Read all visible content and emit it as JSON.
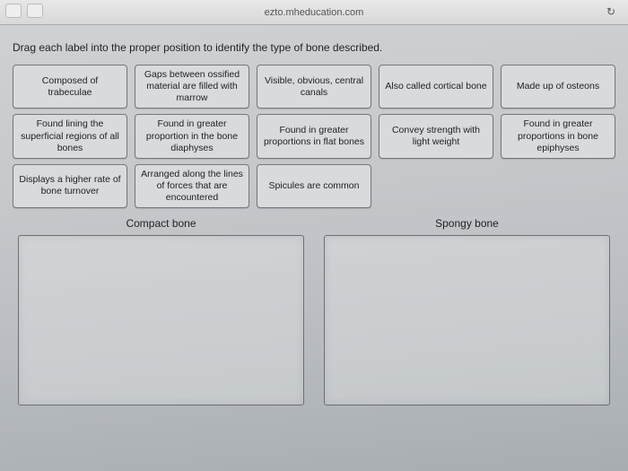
{
  "browser": {
    "url": "ezto.mheducation.com"
  },
  "instruction": "Drag each label into the proper position to identify the type of bone described.",
  "labels": {
    "row1": [
      "Composed of trabeculae",
      "Gaps between ossified material are filled with marrow",
      "Visible, obvious, central canals",
      "Also called cortical bone",
      "Made up of osteons"
    ],
    "row2": [
      "Found lining the superficial regions of all bones",
      "Found in greater proportion in the bone diaphyses",
      "Found in greater proportions in flat bones",
      "Convey strength with light weight",
      "Found in greater proportions in bone epiphyses"
    ],
    "row3": [
      "Displays a higher rate of bone turnover",
      "Arranged along the lines of forces that are encountered",
      "Spicules are common"
    ]
  },
  "zones": {
    "left": "Compact bone",
    "right": "Spongy bone"
  },
  "colors": {
    "card_bg": "#d8dadd",
    "card_border": "#777777",
    "text": "#222222",
    "zone_border": "#6d6f72"
  }
}
